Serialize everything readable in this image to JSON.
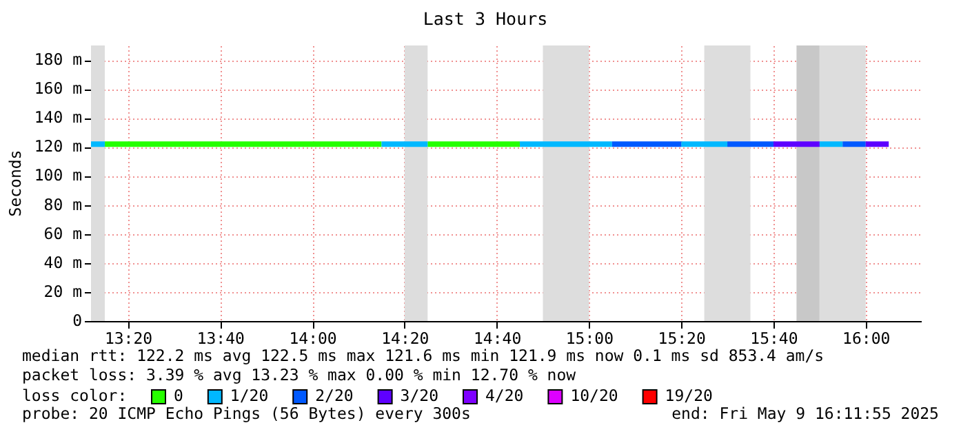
{
  "chart_data": {
    "type": "step",
    "title": "Last 3 Hours",
    "ylabel": "Seconds",
    "legend_title": "loss color:",
    "legend": "bottom",
    "grid": true,
    "xlim": [
      "2025-05-09T13:12",
      "2025-05-09T16:12"
    ],
    "xticks": [
      {
        "value": "2025-05-09T13:20",
        "label": "13:20"
      },
      {
        "value": "2025-05-09T13:40",
        "label": "13:40"
      },
      {
        "value": "2025-05-09T14:00",
        "label": "14:00"
      },
      {
        "value": "2025-05-09T14:20",
        "label": "14:20"
      },
      {
        "value": "2025-05-09T14:40",
        "label": "14:40"
      },
      {
        "value": "2025-05-09T15:00",
        "label": "15:00"
      },
      {
        "value": "2025-05-09T15:20",
        "label": "15:20"
      },
      {
        "value": "2025-05-09T15:40",
        "label": "15:40"
      },
      {
        "value": "2025-05-09T16:00",
        "label": "16:00"
      }
    ],
    "ylim": [
      0,
      190
    ],
    "yticks": [
      0,
      {
        "value": 20,
        "label": "20 m"
      },
      {
        "value": 40,
        "label": "40 m"
      },
      {
        "value": 60,
        "label": "60 m"
      },
      {
        "value": 80,
        "label": "80 m"
      },
      {
        "value": 100,
        "label": "100 m"
      },
      {
        "value": 120,
        "label": "120 m"
      },
      {
        "value": 140,
        "label": "140 m"
      },
      {
        "value": 160,
        "label": "160 m"
      },
      {
        "value": 180,
        "label": "180 m"
      }
    ],
    "series": [
      {
        "name": "0",
        "color": "#26ff00",
        "x": [
          "2025-05-09T13:15",
          "2025-05-09T14:15",
          "2025-05-09T14:20",
          "2025-05-09T14:25",
          "2025-05-09T14:45"
        ],
        "values": [
          122,
          122,
          null,
          122,
          122
        ]
      },
      {
        "name": "1/20",
        "color": "#00b8ff",
        "x": [
          "2025-05-09T13:12",
          "2025-05-09T13:15",
          "2025-05-09T13:20",
          "2025-05-09T14:15",
          "2025-05-09T14:25",
          "2025-05-09T14:30",
          "2025-05-09T14:45",
          "2025-05-09T15:05",
          "2025-05-09T15:10",
          "2025-05-09T15:20",
          "2025-05-09T15:30",
          "2025-05-09T15:35",
          "2025-05-09T15:50",
          "2025-05-09T15:55"
        ],
        "values": [
          122,
          122,
          null,
          122,
          122,
          null,
          122,
          122,
          null,
          122,
          122,
          null,
          122,
          122
        ]
      },
      {
        "name": "2/20",
        "color": "#0059ff",
        "x": [
          "2025-05-09T15:05",
          "2025-05-09T15:20",
          "2025-05-09T15:25",
          "2025-05-09T15:30",
          "2025-05-09T15:40",
          "2025-05-09T15:45",
          "2025-05-09T15:55",
          "2025-05-09T16:00"
        ],
        "values": [
          122,
          122,
          null,
          122,
          122,
          null,
          122,
          122
        ]
      },
      {
        "name": "3/20",
        "color": "#5e00ff",
        "x": [
          "2025-05-09T15:40",
          "2025-05-09T15:50",
          "2025-05-09T15:55",
          "2025-05-09T16:00",
          "2025-05-09T16:05"
        ],
        "values": [
          122,
          122,
          null,
          122,
          122
        ]
      },
      {
        "name": "4/20",
        "color": "#7e00ff"
      },
      {
        "name": "10/20",
        "color": "#dd00ff"
      },
      {
        "name": "19/20",
        "color": "#ff0000"
      }
    ],
    "bands": [
      {
        "axis": "x",
        "from": "2025-05-09T13:12",
        "to": "2025-05-09T13:15",
        "color": "#dddddd"
      },
      {
        "axis": "x",
        "from": "2025-05-09T14:20",
        "to": "2025-05-09T14:25",
        "color": "#dddddd"
      },
      {
        "axis": "x",
        "from": "2025-05-09T14:50",
        "to": "2025-05-09T15:00",
        "color": "#dddddd"
      },
      {
        "axis": "x",
        "from": "2025-05-09T15:25",
        "to": "2025-05-09T15:35",
        "color": "#dddddd"
      },
      {
        "axis": "x",
        "from": "2025-05-09T15:45",
        "to": "2025-05-09T15:50",
        "color": "#c8c8c8"
      },
      {
        "axis": "x",
        "from": "2025-05-09T15:50",
        "to": "2025-05-09T16:00",
        "color": "#dddddd"
      }
    ],
    "annotations": [
      "median rtt:  122.2 ms avg  122.5 ms max  121.6 ms min  121.9 ms now  0.1 ms sd  853.4   am/s",
      "packet loss: 3.39 % avg  13.23 % max  0.00 % min  12.70 % now",
      "probe:       20 ICMP Echo Pings (56 Bytes) every 300s",
      "end: Fri May  9 16:11:55 2025"
    ]
  }
}
